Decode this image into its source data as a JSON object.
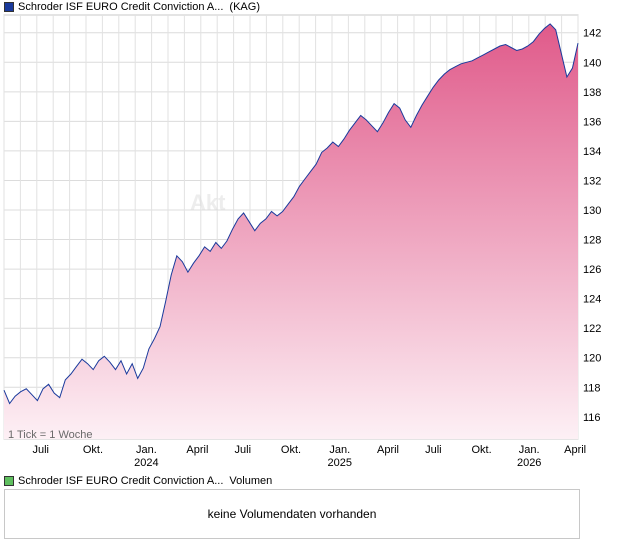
{
  "price_legend": {
    "name": "Schroder ISF EURO Credit Conviction A...",
    "tag": "(KAG)",
    "color": "#1a3a9c"
  },
  "volume_legend": {
    "name": "Schroder ISF EURO Credit Conviction A...",
    "tag": "Volumen",
    "color": "#5fbf5f"
  },
  "volume_message": "keine Volumendaten vorhanden",
  "tick_note": "1 Tick = 1 Woche",
  "watermark": "Akt",
  "chart_data": {
    "type": "area",
    "x_ticks": [
      {
        "label": "Juli",
        "year": "",
        "t": 0.064
      },
      {
        "label": "Okt.",
        "year": "",
        "t": 0.155
      },
      {
        "label": "Jan.",
        "year": "2024",
        "t": 0.248
      },
      {
        "label": "April",
        "year": "",
        "t": 0.337
      },
      {
        "label": "Juli",
        "year": "",
        "t": 0.416
      },
      {
        "label": "Okt.",
        "year": "",
        "t": 0.5
      },
      {
        "label": "Jan.",
        "year": "2025",
        "t": 0.585
      },
      {
        "label": "April",
        "year": "",
        "t": 0.669
      },
      {
        "label": "Juli",
        "year": "",
        "t": 0.748
      },
      {
        "label": "Okt.",
        "year": "",
        "t": 0.832
      },
      {
        "label": "Jan.",
        "year": "2026",
        "t": 0.915
      },
      {
        "label": "April",
        "year": "",
        "t": 0.995
      }
    ],
    "y_ticks": [
      116,
      118,
      120,
      122,
      124,
      126,
      128,
      130,
      132,
      134,
      136,
      138,
      140,
      142
    ],
    "ylim": [
      114.5,
      143.2
    ],
    "grid": true,
    "series": [
      {
        "line_color": "#1a3a9c",
        "fill_top": "#e05a8a",
        "fill_bottom": "#fdf0f5",
        "values": [
          117.8,
          116.9,
          117.4,
          117.7,
          117.9,
          117.5,
          117.1,
          117.9,
          118.2,
          117.6,
          117.3,
          118.5,
          118.9,
          119.4,
          119.9,
          119.6,
          119.2,
          119.8,
          120.1,
          119.7,
          119.2,
          119.8,
          118.9,
          119.6,
          118.6,
          119.3,
          120.6,
          121.3,
          122.1,
          123.8,
          125.6,
          126.9,
          126.5,
          125.8,
          126.4,
          126.9,
          127.5,
          127.2,
          127.8,
          127.4,
          127.9,
          128.7,
          129.4,
          129.8,
          129.2,
          128.6,
          129.1,
          129.4,
          129.9,
          129.6,
          129.9,
          130.4,
          130.9,
          131.6,
          132.1,
          132.6,
          133.1,
          133.9,
          134.2,
          134.6,
          134.3,
          134.8,
          135.4,
          135.9,
          136.4,
          136.1,
          135.7,
          135.3,
          135.9,
          136.6,
          137.2,
          136.9,
          136.1,
          135.6,
          136.4,
          137.1,
          137.7,
          138.3,
          138.8,
          139.2,
          139.5,
          139.7,
          139.9,
          140.0,
          140.1,
          140.3,
          140.5,
          140.7,
          140.9,
          141.1,
          141.2,
          141.0,
          140.8,
          140.9,
          141.1,
          141.4,
          141.9,
          142.3,
          142.6,
          142.2,
          140.6,
          139.0,
          139.6,
          141.3
        ]
      }
    ]
  }
}
